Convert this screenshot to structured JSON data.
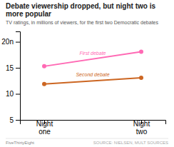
{
  "chart_data": {
    "type": "line",
    "title": "Debate viewership dropped, but night two is more popular",
    "subtitle": "TV ratings, in millions of viewers, for the first two Democratic debates",
    "annotations": [
      "FiveThirtyEight",
      "SOURCE: NIELSEN, MULT SOURCES"
    ],
    "categories": [
      "Night\none",
      "Night\ntwo"
    ],
    "series": [
      {
        "name": "First debate",
        "color": "#FF69B4",
        "marker": "circle",
        "values": [
          15.3,
          18.1
        ]
      },
      {
        "name": "Second debate",
        "color": "#CC6622",
        "marker": "circle",
        "values": [
          11.9,
          13.1
        ]
      }
    ],
    "ylim": [
      5,
      22
    ],
    "yticks": [
      5,
      10,
      15,
      {
        "value": 20,
        "label": "20n"
      }
    ]
  }
}
